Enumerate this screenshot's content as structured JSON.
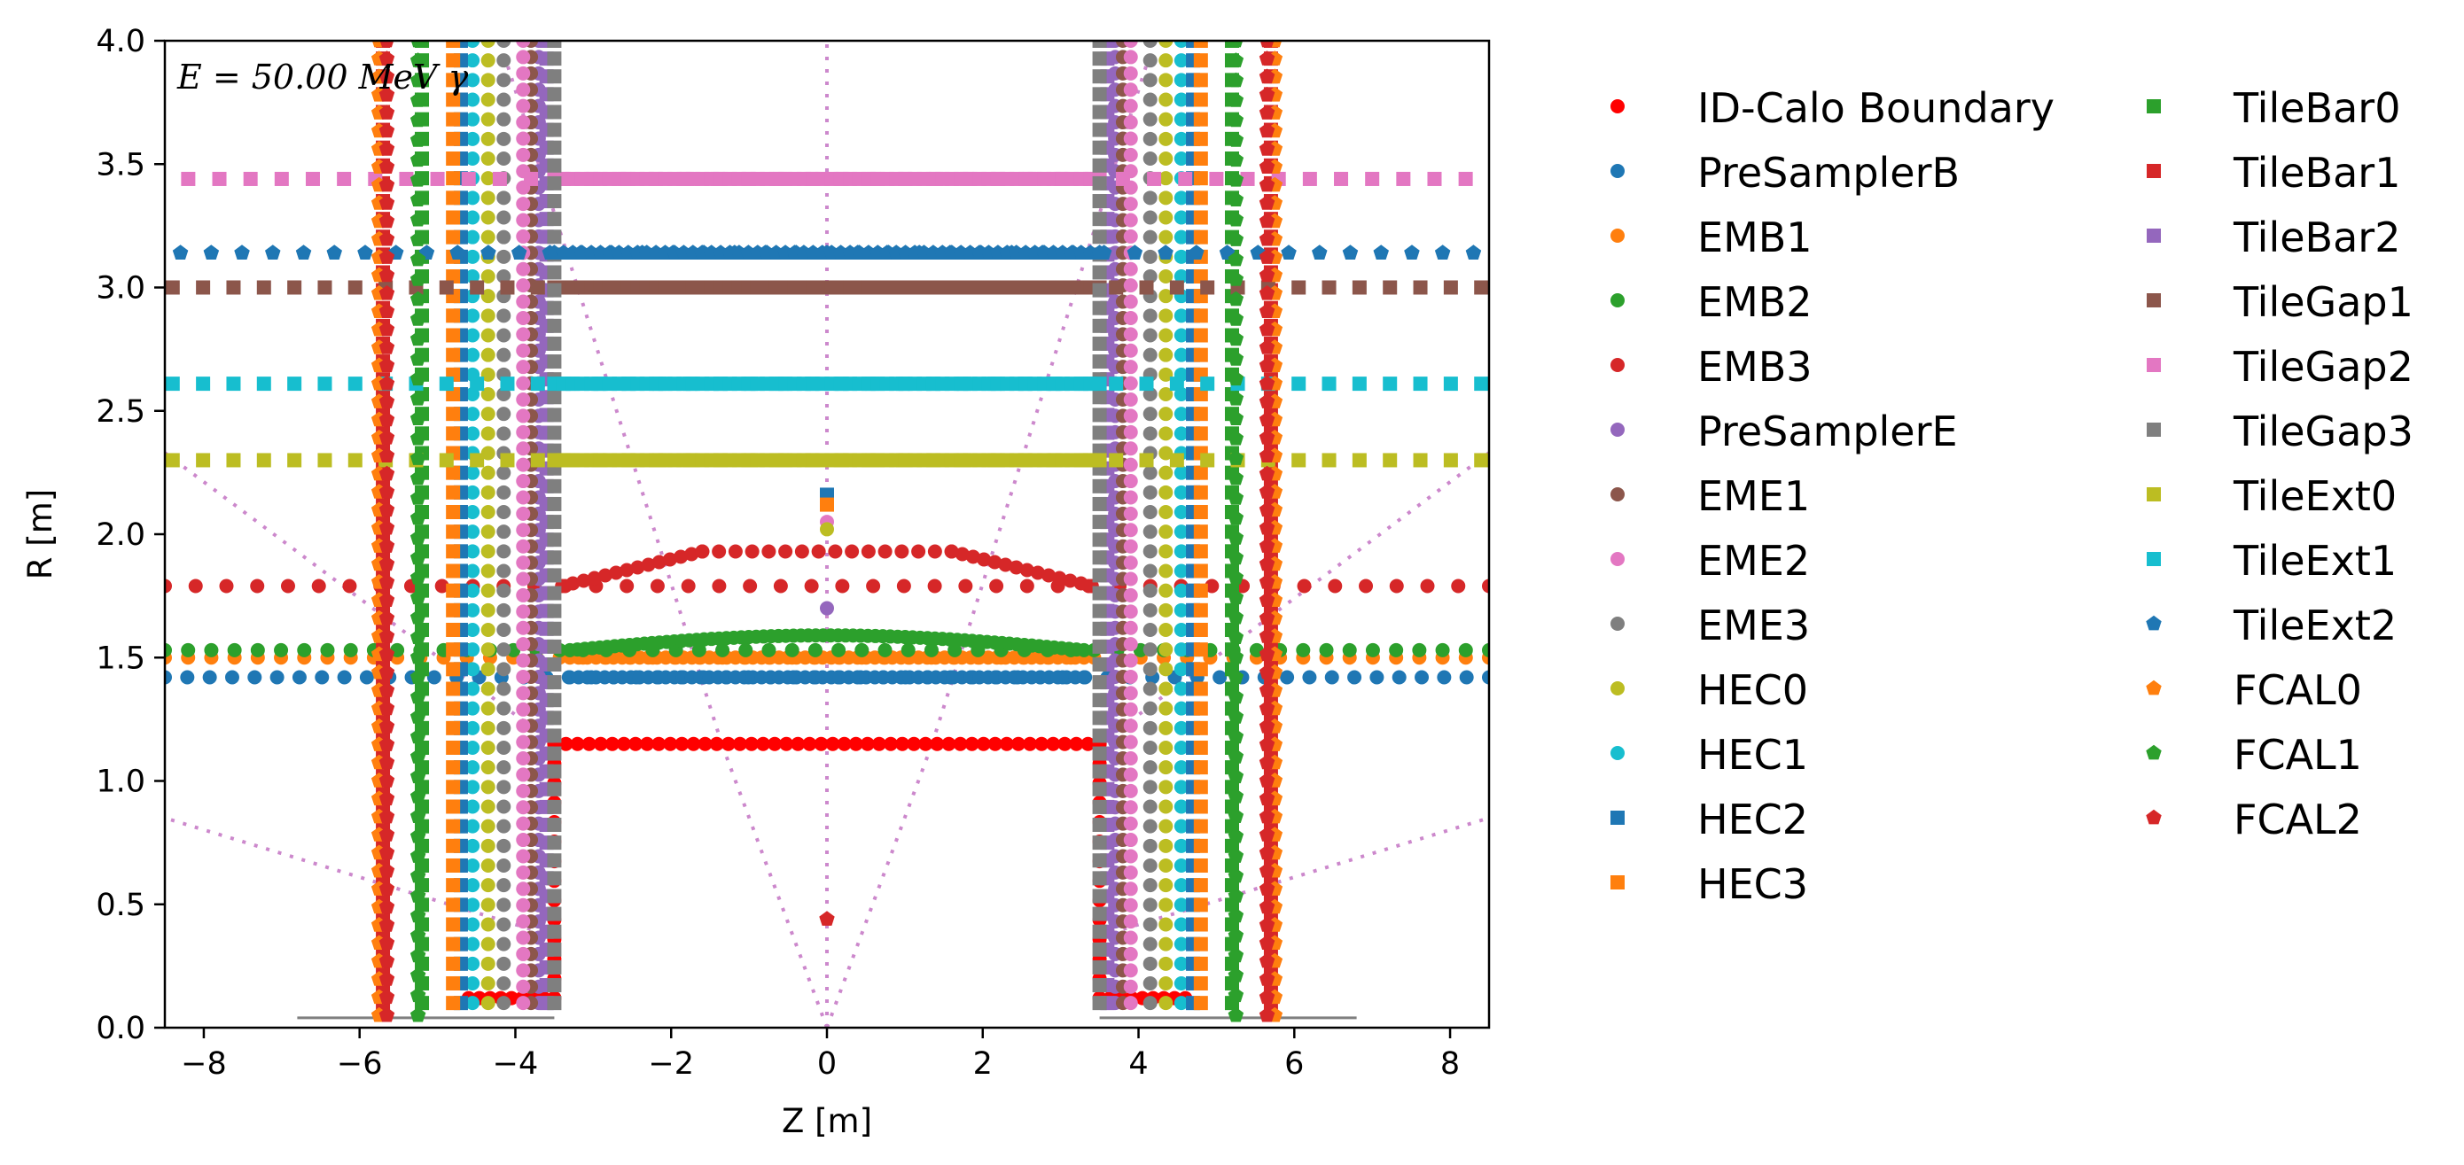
{
  "chart_data": {
    "type": "scatter",
    "title": "",
    "xlabel": "Z [m]",
    "ylabel": "R [m]",
    "xlim": [
      -8.5,
      8.5
    ],
    "ylim": [
      0.0,
      4.0
    ],
    "xticks": [
      -8,
      -6,
      -4,
      -2,
      0,
      2,
      4,
      6,
      8
    ],
    "yticks": [
      0.0,
      0.5,
      1.0,
      1.5,
      2.0,
      2.5,
      3.0,
      3.5,
      4.0
    ],
    "xtick_labels": [
      "−8",
      "−6",
      "−4",
      "−2",
      "0",
      "2",
      "4",
      "6",
      "8"
    ],
    "ytick_labels": [
      "0.0",
      "0.5",
      "1.0",
      "1.5",
      "2.0",
      "2.5",
      "3.0",
      "3.5",
      "4.0"
    ],
    "grid": false,
    "legend_placement": "outside-right",
    "annotation": "E = 50.00 MeV γ",
    "series": [
      {
        "name": "ID-Calo Boundary",
        "color": "#ff0000",
        "marker": "circle",
        "segments": [
          {
            "type": "h",
            "r": 1.15,
            "z": [
              -3.5,
              3.5
            ],
            "n": 48
          },
          {
            "type": "v",
            "z": -3.5,
            "r": [
              0.12,
              1.15
            ],
            "n": 14
          },
          {
            "type": "v",
            "z": 3.5,
            "r": [
              0.12,
              1.15
            ],
            "n": 14
          },
          {
            "type": "h",
            "r": 0.12,
            "z": [
              -4.6,
              -3.5
            ],
            "n": 9
          },
          {
            "type": "h",
            "r": 0.12,
            "z": [
              3.5,
              4.6
            ],
            "n": 9
          }
        ]
      },
      {
        "name": "PreSamplerB",
        "color": "#1f77b4",
        "marker": "circle",
        "segments": [
          {
            "type": "h",
            "r": 1.42,
            "z": [
              -8.5,
              8.5
            ],
            "n": 60
          },
          {
            "type": "h",
            "r": 1.42,
            "z": [
              -3.3,
              3.3
            ],
            "n": 60
          }
        ]
      },
      {
        "name": "EMB1",
        "color": "#ff7f0e",
        "marker": "circle",
        "segments": [
          {
            "type": "h",
            "r": 1.5,
            "z": [
              -8.5,
              8.5
            ],
            "n": 58
          },
          {
            "type": "h",
            "r": 1.5,
            "z": [
              -3.3,
              3.3
            ],
            "n": 60
          }
        ]
      },
      {
        "name": "EMB2",
        "color": "#2ca02c",
        "marker": "circle",
        "segments": [
          {
            "type": "h",
            "r": 1.53,
            "z": [
              -8.5,
              8.5
            ],
            "n": 58
          },
          {
            "type": "curve",
            "z": [
              -3.3,
              3.3
            ],
            "r": [
              1.53,
              1.59
            ],
            "n": 70
          }
        ]
      },
      {
        "name": "EMB3",
        "color": "#d62728",
        "marker": "circle",
        "segments": [
          {
            "type": "h",
            "r": 1.79,
            "z": [
              -8.5,
              8.5
            ],
            "n": 44
          },
          {
            "type": "curve",
            "z": [
              -3.4,
              -1.6
            ],
            "r": [
              1.79,
              1.93
            ],
            "n": 14
          },
          {
            "type": "curve",
            "z": [
              1.6,
              3.4
            ],
            "r": [
              1.93,
              1.79
            ],
            "n": 14
          },
          {
            "type": "h",
            "r": 1.93,
            "z": [
              -1.6,
              1.6
            ],
            "n": 16
          }
        ]
      },
      {
        "name": "PreSamplerE",
        "color": "#9467bd",
        "marker": "circle",
        "segments": [
          {
            "type": "v",
            "z": -3.7,
            "r": [
              0.1,
              4.0
            ],
            "n": 60
          },
          {
            "type": "v",
            "z": 3.7,
            "r": [
              0.1,
              4.0
            ],
            "n": 60
          }
        ]
      },
      {
        "name": "EME1",
        "color": "#8c564b",
        "marker": "circle",
        "segments": [
          {
            "type": "v",
            "z": -3.8,
            "r": [
              0.1,
              4.0
            ],
            "n": 60
          },
          {
            "type": "v",
            "z": 3.8,
            "r": [
              0.1,
              4.0
            ],
            "n": 60
          }
        ]
      },
      {
        "name": "EME2",
        "color": "#e377c2",
        "marker": "circle",
        "segments": [
          {
            "type": "v",
            "z": -3.9,
            "r": [
              0.1,
              4.0
            ],
            "n": 60
          },
          {
            "type": "v",
            "z": 3.9,
            "r": [
              0.1,
              4.0
            ],
            "n": 60
          }
        ]
      },
      {
        "name": "EME3",
        "color": "#7f7f7f",
        "marker": "circle",
        "segments": [
          {
            "type": "v",
            "z": -4.15,
            "r": [
              0.1,
              4.0
            ],
            "n": 50
          },
          {
            "type": "v",
            "z": 4.15,
            "r": [
              0.1,
              4.0
            ],
            "n": 50
          }
        ]
      },
      {
        "name": "HEC0",
        "color": "#bcbd22",
        "marker": "circle",
        "segments": [
          {
            "type": "v",
            "z": -4.35,
            "r": [
              0.1,
              4.0
            ],
            "n": 50
          },
          {
            "type": "v",
            "z": 4.35,
            "r": [
              0.1,
              4.0
            ],
            "n": 50
          }
        ]
      },
      {
        "name": "HEC1",
        "color": "#17becf",
        "marker": "circle",
        "segments": [
          {
            "type": "v",
            "z": -4.55,
            "r": [
              0.1,
              4.0
            ],
            "n": 50
          },
          {
            "type": "v",
            "z": 4.55,
            "r": [
              0.1,
              4.0
            ],
            "n": 50
          }
        ]
      },
      {
        "name": "HEC2",
        "color": "#1f77b4",
        "marker": "square",
        "segments": [
          {
            "type": "v",
            "z": -4.7,
            "r": [
              0.1,
              4.0
            ],
            "n": 50
          },
          {
            "type": "v",
            "z": 4.7,
            "r": [
              0.1,
              4.0
            ],
            "n": 50
          }
        ]
      },
      {
        "name": "HEC3",
        "color": "#ff7f0e",
        "marker": "square",
        "segments": [
          {
            "type": "v",
            "z": -4.8,
            "r": [
              0.1,
              4.0
            ],
            "n": 50
          },
          {
            "type": "v",
            "z": 4.8,
            "r": [
              0.1,
              4.0
            ],
            "n": 50
          }
        ]
      },
      {
        "name": "TileBar0",
        "color": "#2ca02c",
        "marker": "square",
        "segments": [
          {
            "type": "v",
            "z": -5.2,
            "r": [
              0.1,
              4.0
            ],
            "n": 50
          },
          {
            "type": "v",
            "z": 5.2,
            "r": [
              0.1,
              4.0
            ],
            "n": 50
          }
        ]
      },
      {
        "name": "TileBar1",
        "color": "#d62728",
        "marker": "square",
        "segments": [
          {
            "type": "v",
            "z": -5.7,
            "r": [
              0.1,
              4.0
            ],
            "n": 55
          },
          {
            "type": "v",
            "z": 5.7,
            "r": [
              0.1,
              4.0
            ],
            "n": 55
          }
        ]
      },
      {
        "name": "TileBar2",
        "color": "#9467bd",
        "marker": "square",
        "segments": [
          {
            "type": "v",
            "z": -3.6,
            "r": [
              0.1,
              4.0
            ],
            "n": 55
          },
          {
            "type": "v",
            "z": 3.6,
            "r": [
              0.1,
              4.0
            ],
            "n": 55
          }
        ]
      },
      {
        "name": "TileGap1",
        "color": "#8c564b",
        "marker": "square",
        "segments": [
          {
            "type": "h",
            "r": 3.0,
            "z": [
              -8.4,
              8.4
            ],
            "n": 44
          },
          {
            "type": "h",
            "r": 3.0,
            "z": [
              -3.5,
              3.5
            ],
            "n": 60
          }
        ]
      },
      {
        "name": "TileGap2",
        "color": "#e377c2",
        "marker": "square",
        "segments": [
          {
            "type": "h",
            "r": 3.44,
            "z": [
              -8.2,
              8.2
            ],
            "n": 42
          },
          {
            "type": "h",
            "r": 3.44,
            "z": [
              -3.5,
              3.5
            ],
            "n": 60
          }
        ]
      },
      {
        "name": "TileGap3",
        "color": "#7f7f7f",
        "marker": "square",
        "segments": [
          {
            "type": "v",
            "z": -3.5,
            "r": [
              0.1,
              4.0
            ],
            "n": 55
          },
          {
            "type": "v",
            "z": 3.5,
            "r": [
              0.1,
              4.0
            ],
            "n": 55
          }
        ]
      },
      {
        "name": "TileExt0",
        "color": "#bcbd22",
        "marker": "square",
        "segments": [
          {
            "type": "h",
            "r": 2.3,
            "z": [
              -8.4,
              8.4
            ],
            "n": 44
          },
          {
            "type": "h",
            "r": 2.3,
            "z": [
              -3.5,
              3.5
            ],
            "n": 60
          }
        ]
      },
      {
        "name": "TileExt1",
        "color": "#17becf",
        "marker": "square",
        "segments": [
          {
            "type": "h",
            "r": 2.61,
            "z": [
              -8.4,
              8.4
            ],
            "n": 44
          },
          {
            "type": "h",
            "r": 2.61,
            "z": [
              -3.5,
              3.5
            ],
            "n": 60
          }
        ]
      },
      {
        "name": "TileExt2",
        "color": "#1f77b4",
        "marker": "pentagon",
        "segments": [
          {
            "type": "h",
            "r": 3.14,
            "z": [
              -8.3,
              8.3
            ],
            "n": 43
          },
          {
            "type": "h",
            "r": 3.14,
            "z": [
              -3.5,
              3.5
            ],
            "n": 60
          }
        ]
      },
      {
        "name": "FCAL0",
        "color": "#ff7f0e",
        "marker": "pentagon",
        "segments": [
          {
            "type": "v",
            "z": -5.75,
            "r": [
              0.05,
              4.0
            ],
            "n": 55
          },
          {
            "type": "v",
            "z": 5.75,
            "r": [
              0.05,
              4.0
            ],
            "n": 55
          }
        ]
      },
      {
        "name": "FCAL1",
        "color": "#2ca02c",
        "marker": "pentagon",
        "segments": [
          {
            "type": "v",
            "z": -5.25,
            "r": [
              0.05,
              4.0
            ],
            "n": 50
          },
          {
            "type": "v",
            "z": 5.25,
            "r": [
              0.05,
              4.0
            ],
            "n": 50
          }
        ]
      },
      {
        "name": "FCAL2",
        "color": "#d62728",
        "marker": "pentagon",
        "segments": [
          {
            "type": "v",
            "z": -5.65,
            "r": [
              0.05,
              4.0
            ],
            "n": 55
          },
          {
            "type": "v",
            "z": 5.65,
            "r": [
              0.05,
              4.0
            ],
            "n": 55
          }
        ]
      }
    ],
    "extras": {
      "center_points": [
        {
          "z": 0,
          "r": 2.16,
          "color": "#1f77b4",
          "marker": "square"
        },
        {
          "z": 0,
          "r": 2.12,
          "color": "#ff7f0e",
          "marker": "square"
        },
        {
          "z": 0,
          "r": 2.05,
          "color": "#e377c2",
          "marker": "circle"
        },
        {
          "z": 0,
          "r": 2.02,
          "color": "#bcbd22",
          "marker": "circle"
        },
        {
          "z": 0,
          "r": 1.7,
          "color": "#9467bd",
          "marker": "circle"
        },
        {
          "z": 0,
          "r": 0.44,
          "color": "#d62728",
          "marker": "pentagon"
        }
      ],
      "eta_lines_color": "#cc88cc",
      "beampipe_lines": [
        {
          "z": [
            -6.8,
            -3.5
          ],
          "r": 0.04,
          "color": "#7f7f7f"
        },
        {
          "z": [
            3.5,
            6.8
          ],
          "r": 0.04,
          "color": "#7f7f7f"
        }
      ]
    }
  }
}
